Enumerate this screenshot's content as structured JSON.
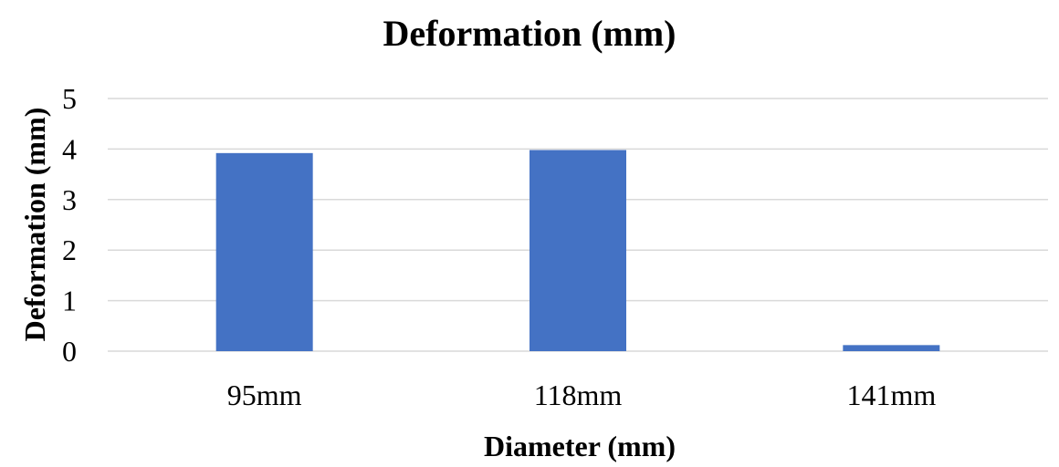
{
  "chart_data": {
    "type": "bar",
    "title": "Deformation (mm)",
    "xlabel": "Diameter (mm)",
    "ylabel": "Deformation (mm)",
    "categories": [
      "95mm",
      "118mm",
      "141mm"
    ],
    "values": [
      3.92,
      3.98,
      0.12
    ],
    "ylim": [
      0,
      5
    ],
    "yticks": [
      "0",
      "1",
      "2",
      "3",
      "4",
      "5"
    ],
    "grid": true,
    "legend": "none",
    "bar_color": "#4472c4"
  }
}
